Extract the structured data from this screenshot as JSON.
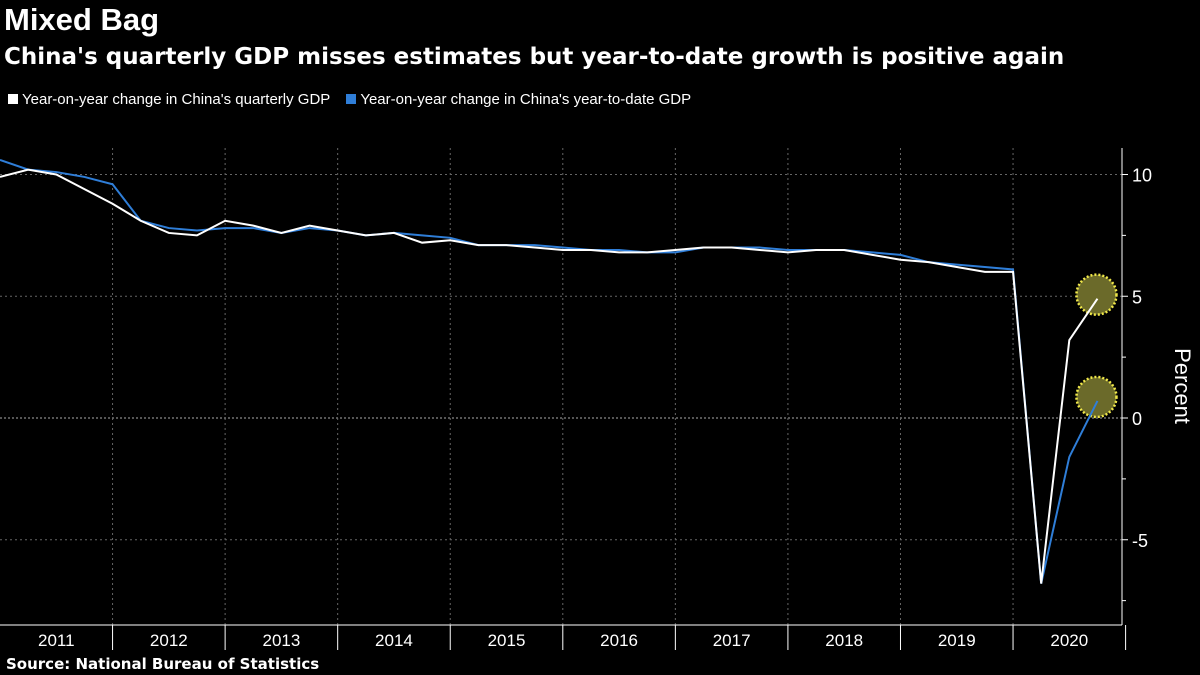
{
  "title": "Mixed Bag",
  "subtitle": "China's quarterly GDP misses estimates but year-to-date growth is positive again",
  "source": "Source: National Bureau of Statistics",
  "colors": {
    "quarterly": "#ffffff",
    "ytd": "#2f7ed8",
    "highlight": "#6b6a2a",
    "highlight_border": "#f0e84a"
  },
  "chart_data": {
    "type": "line",
    "title": "Mixed Bag",
    "ylabel": "Percent",
    "ylim": [
      -8,
      12
    ],
    "yticks": [
      -5,
      0,
      5,
      10
    ],
    "xtick_labels": [
      "2011",
      "2012",
      "2013",
      "2014",
      "2015",
      "2016",
      "2017",
      "2018",
      "2019",
      "2020"
    ],
    "x": [
      "2010Q4",
      "2011Q1",
      "2011Q2",
      "2011Q3",
      "2011Q4",
      "2012Q1",
      "2012Q2",
      "2012Q3",
      "2012Q4",
      "2013Q1",
      "2013Q2",
      "2013Q3",
      "2013Q4",
      "2014Q1",
      "2014Q2",
      "2014Q3",
      "2014Q4",
      "2015Q1",
      "2015Q2",
      "2015Q3",
      "2015Q4",
      "2016Q1",
      "2016Q2",
      "2016Q3",
      "2016Q4",
      "2017Q1",
      "2017Q2",
      "2017Q3",
      "2017Q4",
      "2018Q1",
      "2018Q2",
      "2018Q3",
      "2018Q4",
      "2019Q1",
      "2019Q2",
      "2019Q3",
      "2019Q4",
      "2020Q1",
      "2020Q2",
      "2020Q3"
    ],
    "grid": true,
    "legend": "top-left",
    "series": [
      {
        "name": "Year-on-year change in China's quarterly GDP",
        "color": "#ffffff",
        "values": [
          9.9,
          10.2,
          10.0,
          9.4,
          8.8,
          8.1,
          7.6,
          7.5,
          8.1,
          7.9,
          7.6,
          7.9,
          7.7,
          7.5,
          7.6,
          7.2,
          7.3,
          7.1,
          7.1,
          7.0,
          6.9,
          6.9,
          6.8,
          6.8,
          6.9,
          7.0,
          7.0,
          6.9,
          6.8,
          6.9,
          6.9,
          6.7,
          6.5,
          6.4,
          6.2,
          6.0,
          6.0,
          -6.8,
          3.2,
          4.9
        ]
      },
      {
        "name": "Year-on-year change in China's year-to-date GDP",
        "color": "#2f7ed8",
        "values": [
          10.6,
          10.2,
          10.1,
          9.9,
          9.6,
          8.1,
          7.8,
          7.7,
          7.8,
          7.8,
          7.6,
          7.8,
          7.7,
          7.5,
          7.6,
          7.5,
          7.4,
          7.1,
          7.1,
          7.1,
          7.0,
          6.9,
          6.9,
          6.8,
          6.8,
          7.0,
          7.0,
          7.0,
          6.9,
          6.9,
          6.9,
          6.8,
          6.7,
          6.4,
          6.3,
          6.2,
          6.1,
          -6.8,
          -1.6,
          0.7
        ]
      }
    ],
    "highlighted_points": [
      "2020Q3"
    ]
  }
}
